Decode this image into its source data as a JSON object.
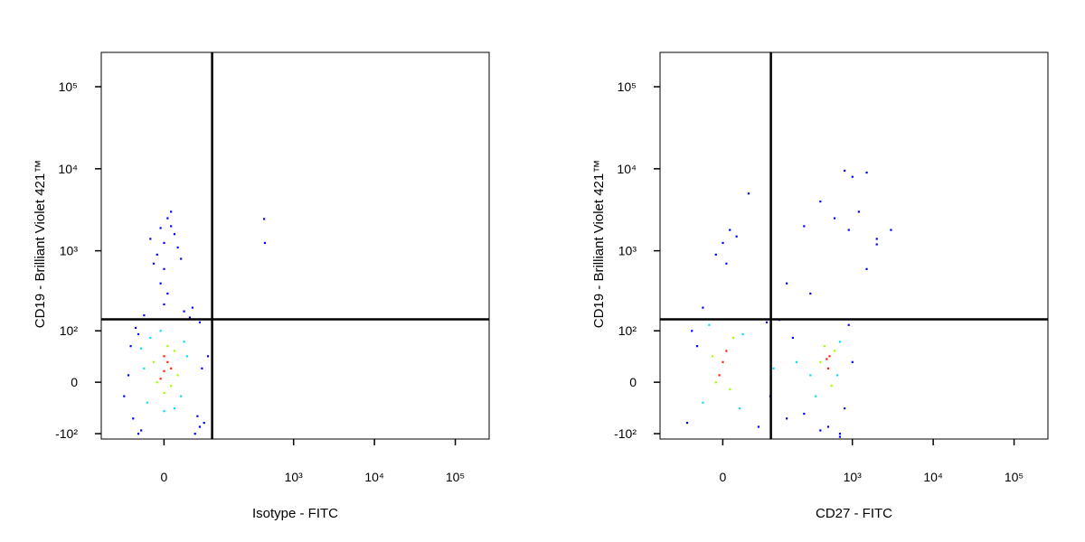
{
  "chart_data": [
    {
      "type": "scatter",
      "xlabel": "Isotype - FITC",
      "ylabel": "CD19 - Brilliant Violet 421™",
      "xscale": "biexponential",
      "yscale": "biexponential",
      "xlim": [
        -145,
        262144
      ],
      "ylim": [
        -118,
        262144
      ],
      "xticks": [
        0,
        {
          "value": 1000,
          "label": "10³"
        },
        {
          "value": 10000,
          "label": "10⁴"
        },
        {
          "value": 100000,
          "label": "10⁵"
        }
      ],
      "yticks": [
        {
          "value": -100,
          "label": "-10²"
        },
        0,
        {
          "value": 100,
          "label": "10²"
        },
        {
          "value": 1000,
          "label": "10³"
        },
        {
          "value": 10000,
          "label": "10⁴"
        },
        {
          "value": 100000,
          "label": "10⁵"
        }
      ],
      "gates": {
        "x": 92,
        "y": 142
      },
      "point_groups": [
        {
          "color": "#0000ff",
          "x": [
            -50,
            -45,
            55,
            60,
            -40,
            70,
            65,
            -60,
            40,
            -35,
            50,
            -55,
            80,
            -70,
            45,
            0,
            -10,
            15,
            5,
            -15,
            20,
            10,
            -5,
            25,
            0,
            -20,
            10,
            5,
            -5,
            0,
            430,
            440,
            -30,
            30,
            -40,
            60
          ],
          "y": [
            -60,
            110,
            -55,
            130,
            90,
            -70,
            20,
            10,
            150,
            -90,
            -100,
            60,
            40,
            -20,
            200,
            1250,
            900,
            1600,
            2500,
            700,
            1100,
            3000,
            1900,
            800,
            600,
            1400,
            2000,
            300,
            400,
            220,
            2450,
            1250,
            160,
            180,
            -100,
            -80
          ]
        },
        {
          "color": "#00e0ff",
          "x": [
            -25,
            30,
            -20,
            25,
            -30,
            0,
            35,
            -5,
            15,
            -35
          ],
          "y": [
            -30,
            70,
            80,
            -20,
            20,
            -45,
            40,
            100,
            -40,
            55
          ]
        },
        {
          "color": "#a0ff00",
          "x": [
            -10,
            15,
            0,
            20,
            -15,
            5,
            10
          ],
          "y": [
            0,
            50,
            -15,
            10,
            30,
            60,
            -5
          ]
        },
        {
          "color": "#ff2000",
          "x": [
            0,
            5,
            -5,
            10,
            0
          ],
          "y": [
            16,
            30,
            5,
            20,
            40
          ]
        }
      ]
    },
    {
      "type": "scatter",
      "xlabel": "CD27 - FITC",
      "ylabel": "CD19 - Brilliant Violet 421™",
      "xscale": "biexponential",
      "yscale": "biexponential",
      "xlim": [
        -145,
        262144
      ],
      "ylim": [
        -118,
        262144
      ],
      "xticks": [
        0,
        {
          "value": 1000,
          "label": "10³"
        },
        {
          "value": 10000,
          "label": "10⁴"
        },
        {
          "value": 100000,
          "label": "10⁵"
        }
      ],
      "yticks": [
        {
          "value": -100,
          "label": "-10²"
        },
        0,
        {
          "value": 100,
          "label": "10²"
        },
        {
          "value": 1000,
          "label": "10³"
        },
        {
          "value": 10000,
          "label": "10⁴"
        },
        {
          "value": 100000,
          "label": "10⁵"
        }
      ],
      "gates": {
        "x": 92,
        "y": 142
      },
      "point_groups": [
        {
          "color": "#0000ff",
          "x": [
            -60,
            -50,
            60,
            80,
            120,
            150,
            250,
            400,
            800,
            900,
            -40,
            700,
            1000,
            180,
            90,
            0,
            10,
            -10,
            20,
            5,
            150,
            300,
            600,
            900,
            1500,
            2000,
            1200,
            400,
            250,
            800,
            3000,
            1000,
            1500,
            2000,
            -30,
            40,
            500,
            700
          ],
          "y": [
            -70,
            100,
            -80,
            130,
            140,
            -60,
            -50,
            -90,
            -40,
            120,
            60,
            -100,
            30,
            80,
            -20,
            1250,
            1800,
            900,
            1500,
            700,
            400,
            300,
            2500,
            1800,
            600,
            1200,
            3000,
            4000,
            2000,
            9500,
            1800,
            8000,
            9000,
            1400,
            200,
            5000,
            -80,
            -110
          ]
        },
        {
          "color": "#00e0ff",
          "x": [
            -30,
            30,
            100,
            200,
            300,
            350,
            650,
            700,
            -20,
            25
          ],
          "y": [
            -30,
            90,
            20,
            30,
            10,
            -20,
            10,
            70,
            120,
            -40
          ]
        },
        {
          "color": "#a0ff00",
          "x": [
            -10,
            15,
            10,
            450,
            550,
            600,
            400,
            -15
          ],
          "y": [
            0,
            80,
            -10,
            60,
            -5,
            50,
            30,
            40
          ]
        },
        {
          "color": "#ff2000",
          "x": [
            0,
            5,
            500,
            520,
            -5,
            480
          ],
          "y": [
            30,
            50,
            20,
            40,
            10,
            35
          ]
        }
      ]
    }
  ]
}
